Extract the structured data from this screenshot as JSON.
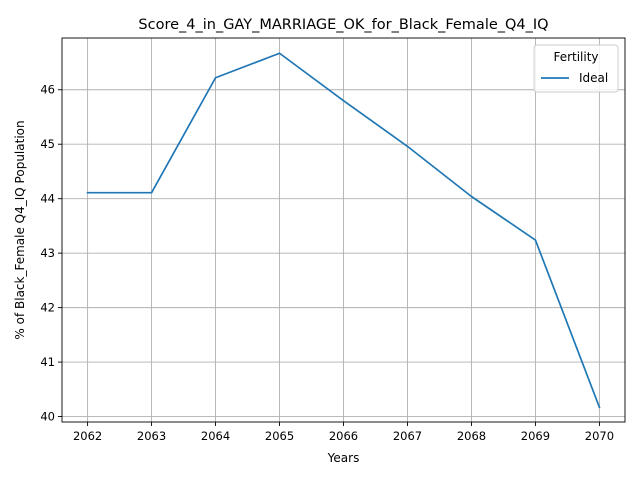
{
  "chart_data": {
    "type": "line",
    "title": "Score_4_in_GAY_MARRIAGE_OK_for_Black_Female_Q4_IQ",
    "xlabel": "Years",
    "ylabel": "% of Black_Female Q4_IQ Population",
    "x": [
      2062,
      2063,
      2064,
      2065,
      2066,
      2067,
      2068,
      2069,
      2070
    ],
    "series": [
      {
        "name": "Ideal",
        "color": "#1f77b4",
        "values": [
          44.11,
          44.11,
          46.22,
          46.67,
          45.8,
          44.96,
          44.04,
          43.24,
          40.17
        ]
      }
    ],
    "xticks": [
      2062,
      2063,
      2064,
      2065,
      2066,
      2067,
      2068,
      2069,
      2070
    ],
    "yticks": [
      40,
      41,
      42,
      43,
      44,
      45,
      46
    ],
    "xlim": [
      2061.6,
      2070.4
    ],
    "ylim": [
      39.9,
      46.95
    ],
    "grid": true,
    "legend": {
      "title": "Fertility",
      "placement": "top-right"
    }
  }
}
